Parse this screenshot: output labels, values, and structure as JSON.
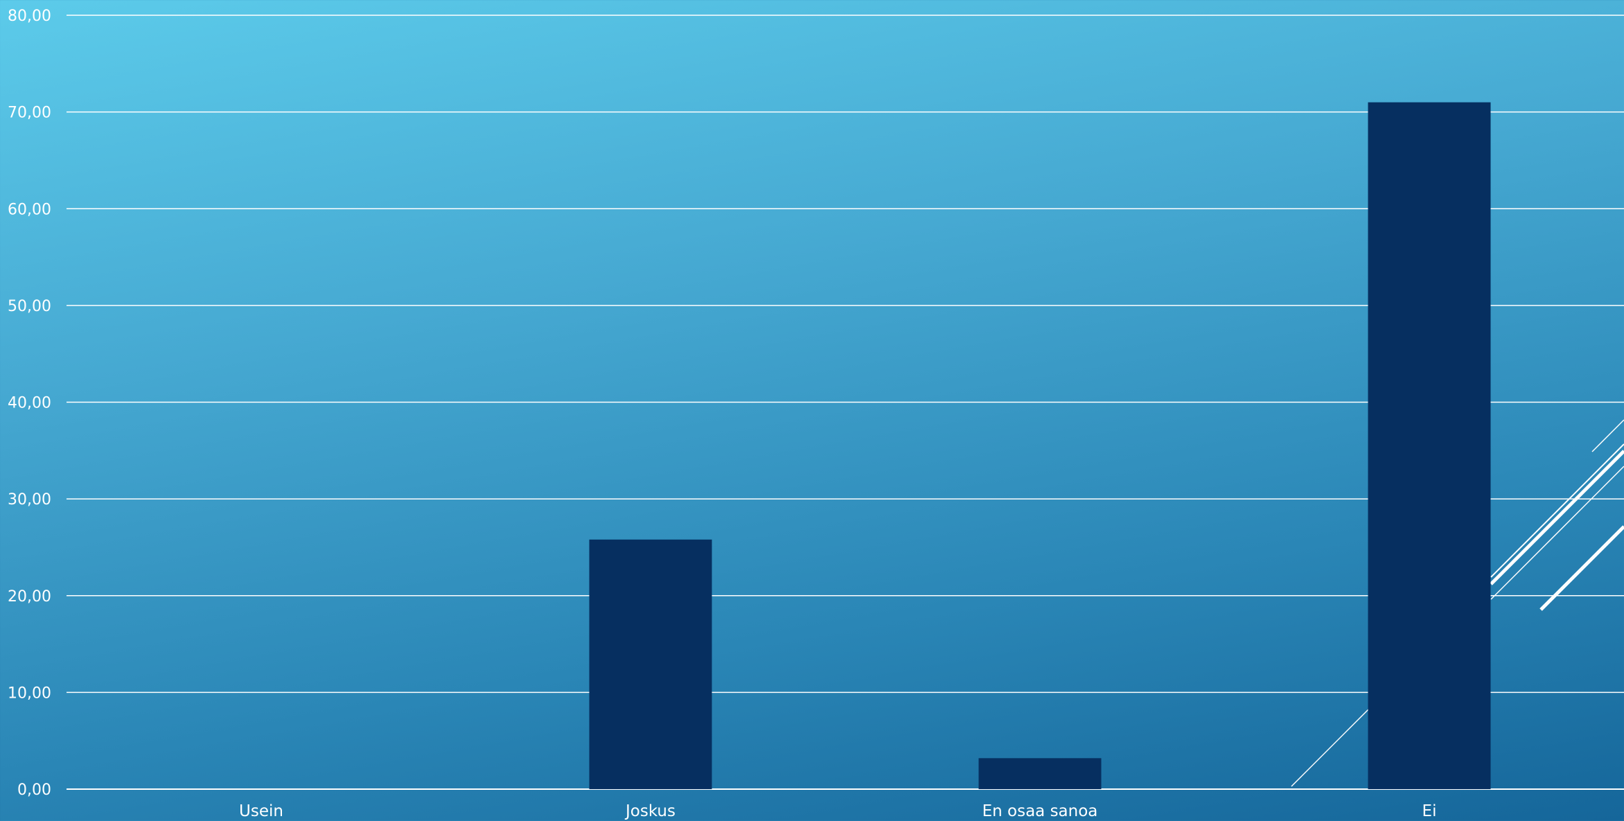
{
  "chart_data": {
    "type": "bar",
    "categories": [
      "Usein",
      "Joskus",
      "En osaa sanoa",
      "Ei"
    ],
    "values": [
      0,
      25.8,
      3.2,
      71.0
    ],
    "ylim": [
      0,
      80
    ],
    "yticks": [
      "0,00",
      "10,00",
      "20,00",
      "30,00",
      "40,00",
      "50,00",
      "60,00",
      "70,00",
      "80,00"
    ],
    "grid": true,
    "bar_color": "#062f60"
  }
}
